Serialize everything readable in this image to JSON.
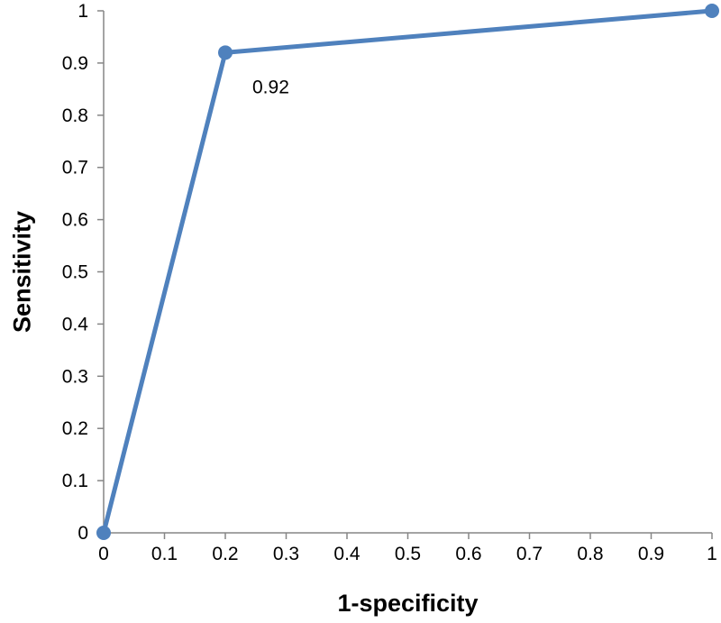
{
  "chart_data": {
    "type": "line",
    "title": "",
    "xlabel": "1-specificity",
    "ylabel": "Sensitivity",
    "xlim": [
      0,
      1
    ],
    "ylim": [
      0,
      1
    ],
    "x_ticks": [
      "0",
      "0.1",
      "0.2",
      "0.3",
      "0.4",
      "0.5",
      "0.6",
      "0.7",
      "0.8",
      "0.9",
      "1"
    ],
    "y_ticks": [
      "0",
      "0.1",
      "0.2",
      "0.3",
      "0.4",
      "0.5",
      "0.6",
      "0.7",
      "0.8",
      "0.9",
      "1"
    ],
    "grid": false,
    "legend": "none",
    "series": [
      {
        "color": "#4f81bd",
        "x": [
          0,
          0.2,
          1
        ],
        "y": [
          0,
          0.92,
          1
        ],
        "data_labels": [
          null,
          "0.92",
          null
        ]
      }
    ]
  }
}
